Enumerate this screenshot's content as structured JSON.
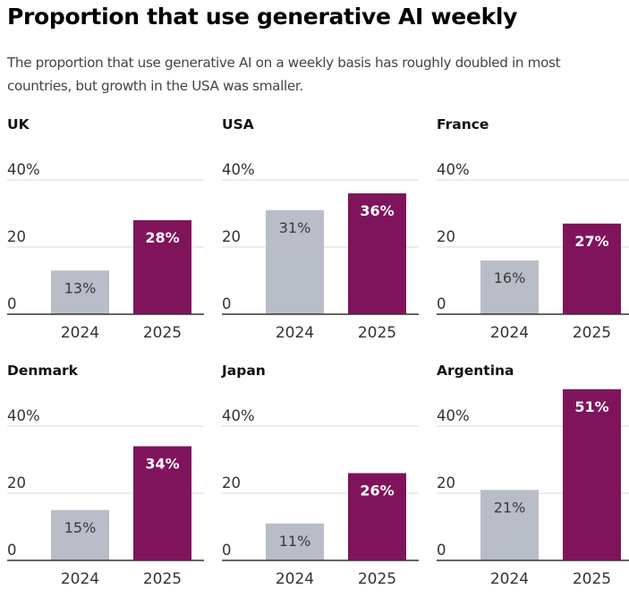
{
  "title": "Proportion that use generative AI weekly",
  "subtitle": "The proportion that use generative AI on a weekly basis has roughly doubled in most countries, but growth in the USA was smaller.",
  "colors": {
    "year_2024": "#b8bdc8",
    "year_2025": "#80145c",
    "gridline": "#e6e6e6",
    "axis": "#333333"
  },
  "chart_data": {
    "type": "bar",
    "title": "Proportion that use generative AI weekly",
    "subtitle": "The proportion that use generative AI on a weekly basis has roughly doubled in most countries, but growth in the USA was smaller.",
    "xlabel": "",
    "ylabel": "",
    "categories": [
      "2024",
      "2025"
    ],
    "ylim": [
      0,
      40
    ],
    "yticks": [
      0,
      20,
      40
    ],
    "ytick_labels": [
      "0",
      "20",
      "40%"
    ],
    "grid": true,
    "legend": "none",
    "panels": [
      {
        "name": "UK",
        "values": [
          13,
          28
        ],
        "labels": [
          "13%",
          "28%"
        ]
      },
      {
        "name": "USA",
        "values": [
          31,
          36
        ],
        "labels": [
          "31%",
          "36%"
        ]
      },
      {
        "name": "France",
        "values": [
          16,
          27
        ],
        "labels": [
          "16%",
          "27%"
        ]
      },
      {
        "name": "Denmark",
        "values": [
          15,
          34
        ],
        "labels": [
          "15%",
          "34%"
        ]
      },
      {
        "name": "Japan",
        "values": [
          11,
          26
        ],
        "labels": [
          "11%",
          "26%"
        ]
      },
      {
        "name": "Argentina",
        "values": [
          21,
          51
        ],
        "labels": [
          "21%",
          "51%"
        ]
      }
    ]
  }
}
